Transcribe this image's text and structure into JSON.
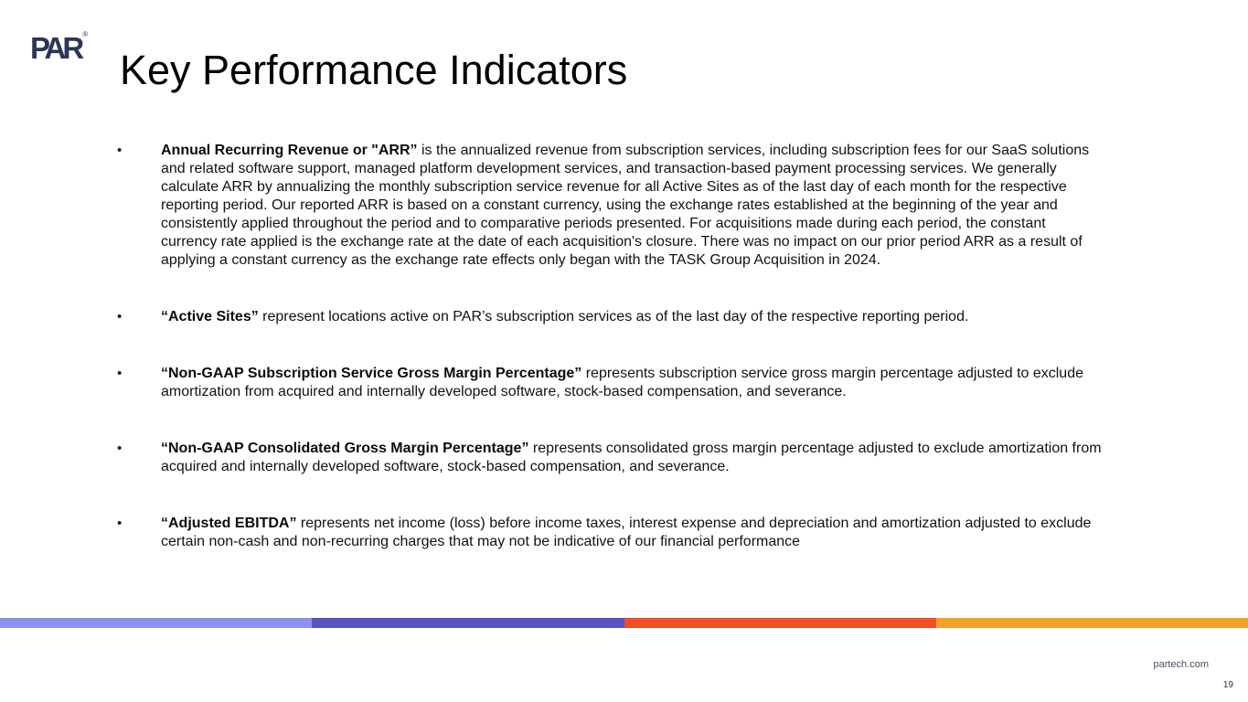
{
  "logo": {
    "text": "PAR",
    "registered_mark": "®"
  },
  "title": "Key Performance Indicators",
  "bullet_marker": "•",
  "bullets": [
    {
      "term": "Annual Recurring Revenue or \"ARR”",
      "definition": " is the annualized revenue from subscription services, including subscription fees for our SaaS solutions and related software support, managed platform development services, and transaction-based payment processing services. We generally calculate ARR by annualizing the monthly subscription service revenue for all Active Sites as of the last day of each month for the respective reporting period. Our reported ARR is based on a constant currency, using the exchange rates established at the beginning of the year and consistently applied throughout the period and to comparative periods presented. For acquisitions made during each period, the constant currency rate applied is the exchange rate at the date of each acquisition's closure. There was no impact on our prior period ARR as a result of applying a constant currency as the exchange rate effects only began with the TASK Group Acquisition in 2024."
    },
    {
      "term": "“Active Sites”",
      "definition": " represent locations active on PAR’s subscription services as of the last day of the respective reporting period."
    },
    {
      "term": "“Non-GAAP Subscription Service Gross Margin Percentage”",
      "definition": " represents subscription service gross margin percentage adjusted to exclude amortization from acquired and internally developed software, stock-based compensation, and severance."
    },
    {
      "term": "“Non-GAAP Consolidated Gross Margin Percentage”",
      "definition": " represents consolidated gross margin percentage adjusted to exclude amortization from acquired and internally developed software, stock-based compensation, and severance."
    },
    {
      "term": "“Adjusted EBITDA”",
      "definition": " represents net income (loss) before income taxes, interest expense and depreciation and amortization adjusted to exclude certain non-cash and non-recurring charges that may not be indicative of our financial performance"
    }
  ],
  "accent_stripe": {
    "colors": [
      "#8b93ee",
      "#5a52c3",
      "#f04e23",
      "#f0a22c"
    ]
  },
  "footer": {
    "website": "partech.com",
    "page_number": "19"
  }
}
